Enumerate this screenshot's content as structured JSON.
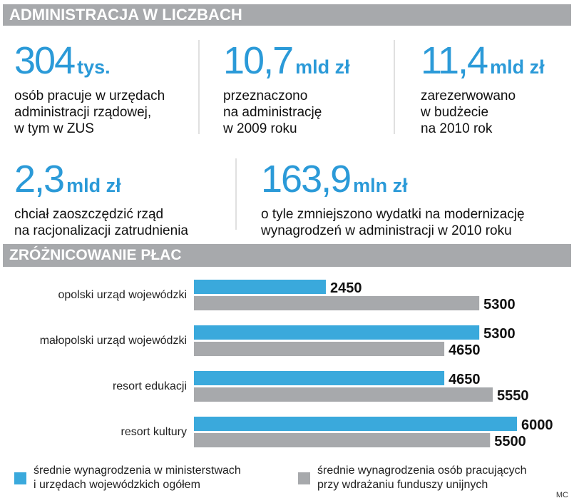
{
  "header": {
    "title": "ADMINISTRACJA W LICZBACH"
  },
  "stats": [
    {
      "number": "304",
      "unit": "tys.",
      "lines": [
        "osób pracuje w urzędach",
        "administracji rządowej,",
        "w tym w ZUS"
      ]
    },
    {
      "number": "10,7",
      "unit": "mld zł",
      "lines": [
        "przeznaczono",
        "na administrację",
        "w 2009 roku"
      ]
    },
    {
      "number": "11,4",
      "unit": "mld zł",
      "lines": [
        "zarezerwowano",
        "w budżecie",
        "na 2010 rok"
      ]
    },
    {
      "number": "2,3",
      "unit": "mld zł",
      "lines": [
        "chciał zaoszczędzić rząd",
        "na racjonalizacji zatrudnienia"
      ]
    },
    {
      "number": "163,9",
      "unit": "mln zł",
      "lines": [
        "o tyle zmniejszono wydatki na modernizację",
        "wynagrodzeń w administracji w 2010 roku"
      ]
    }
  ],
  "section2": {
    "title": "ZRÓŻNICOWANIE PŁAC"
  },
  "chart_data": {
    "type": "bar",
    "orientation": "horizontal",
    "title": "ZRÓŻNICOWANIE PŁAC",
    "categories": [
      "opolski urząd wojewódzki",
      "małopolski urząd wojewódzki",
      "resort edukacji",
      "resort kultury"
    ],
    "series": [
      {
        "name": "średnie wynagrodzenia w ministerstwach i urzędach wojewódzkich ogółem",
        "color": "#3aa9dc",
        "values": [
          2450,
          5300,
          4650,
          6000
        ]
      },
      {
        "name": "średnie wynagrodzenia osób pracujących przy wdrażaniu funduszy unijnych",
        "color": "#a7a9ac",
        "values": [
          5300,
          4650,
          5550,
          5500
        ]
      }
    ],
    "xlim": [
      0,
      6000
    ],
    "grid": false,
    "legend_position": "bottom"
  },
  "legend": [
    {
      "lines": [
        "średnie wynagrodzenia w ministerstwach",
        "i urzędach wojewódzkich ogółem"
      ],
      "color": "#3aa9dc"
    },
    {
      "lines": [
        "średnie wynagrodzenia osób pracujących",
        "przy wdrażaniu funduszy unijnych"
      ],
      "color": "#a7a9ac"
    }
  ],
  "credit": "MC"
}
